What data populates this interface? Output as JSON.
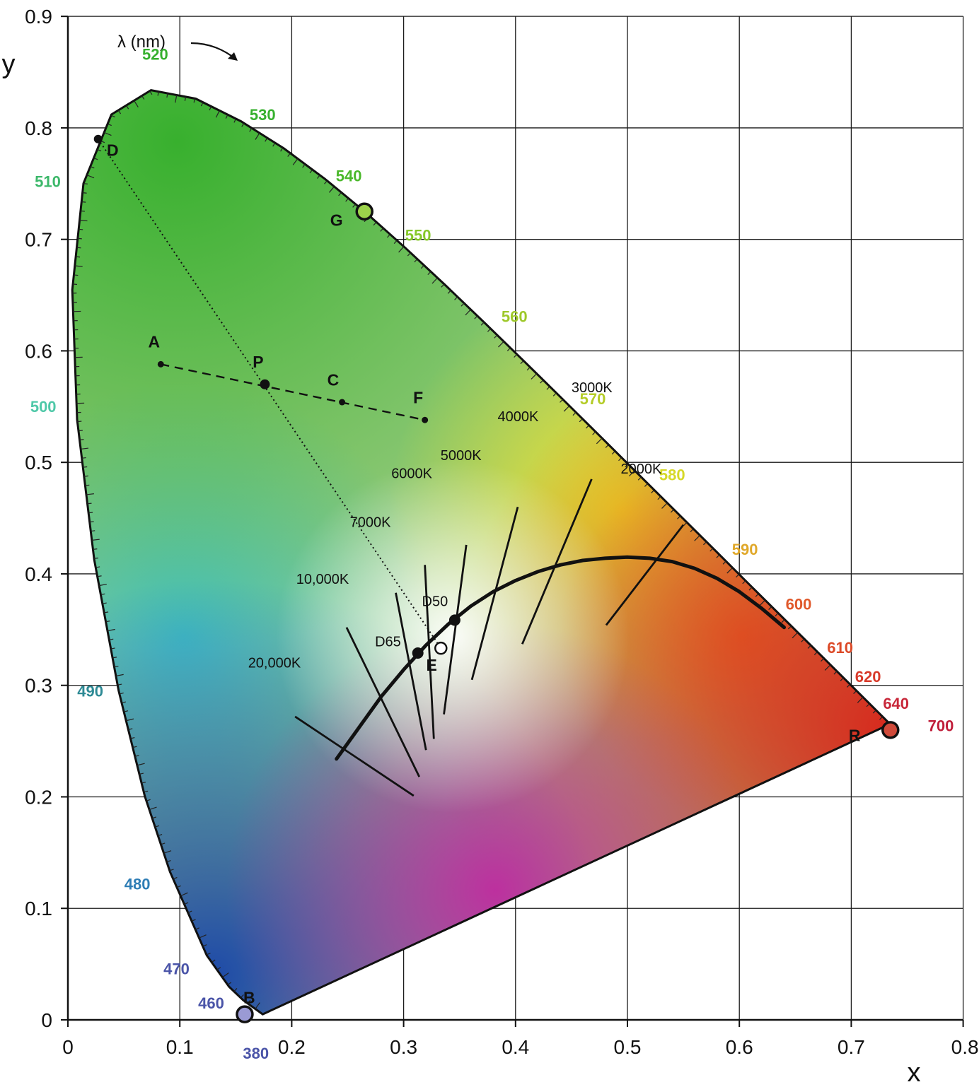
{
  "chart_data": {
    "type": "scatter",
    "xlabel": "x",
    "ylabel": "y",
    "xlim": [
      0,
      0.8
    ],
    "ylim": [
      0,
      0.9
    ],
    "x_ticks": [
      "0",
      "0.1",
      "0.2",
      "0.3",
      "0.4",
      "0.5",
      "0.6",
      "0.7",
      "0.8"
    ],
    "y_ticks": [
      "0",
      "0.1",
      "0.2",
      "0.3",
      "0.4",
      "0.5",
      "0.6",
      "0.7",
      "0.8",
      "0.9"
    ],
    "grid": true,
    "annotation": "λ (nm)",
    "spectral_locus": [
      [
        0.1741,
        0.005
      ],
      [
        0.1566,
        0.0177
      ],
      [
        0.144,
        0.0297
      ],
      [
        0.1241,
        0.0578
      ],
      [
        0.0913,
        0.1327
      ],
      [
        0.0687,
        0.2007
      ],
      [
        0.0454,
        0.295
      ],
      [
        0.0235,
        0.4127
      ],
      [
        0.0082,
        0.5384
      ],
      [
        0.0039,
        0.6548
      ],
      [
        0.0139,
        0.7502
      ],
      [
        0.0389,
        0.812
      ],
      [
        0.0743,
        0.8338
      ],
      [
        0.1142,
        0.8262
      ],
      [
        0.1547,
        0.8059
      ],
      [
        0.1929,
        0.7816
      ],
      [
        0.2296,
        0.7543
      ],
      [
        0.2658,
        0.7243
      ],
      [
        0.3016,
        0.6923
      ],
      [
        0.3373,
        0.6589
      ],
      [
        0.3731,
        0.6245
      ],
      [
        0.4087,
        0.5896
      ],
      [
        0.4441,
        0.5547
      ],
      [
        0.4788,
        0.5202
      ],
      [
        0.5125,
        0.4866
      ],
      [
        0.5448,
        0.4544
      ],
      [
        0.5752,
        0.4242
      ],
      [
        0.6029,
        0.3965
      ],
      [
        0.627,
        0.3725
      ],
      [
        0.6482,
        0.3514
      ],
      [
        0.6658,
        0.334
      ],
      [
        0.6915,
        0.3083
      ],
      [
        0.7079,
        0.292
      ],
      [
        0.7347,
        0.2653
      ]
    ],
    "wavelength_labels": [
      {
        "nm": "380",
        "x": 0.168,
        "y": -0.035,
        "color": "#4a54a8"
      },
      {
        "nm": "460",
        "x": 0.128,
        "y": 0.01,
        "color": "#4a54a8"
      },
      {
        "nm": "470",
        "x": 0.097,
        "y": 0.041,
        "color": "#4a54a8"
      },
      {
        "nm": "480",
        "x": 0.062,
        "y": 0.117,
        "color": "#2e7db5"
      },
      {
        "nm": "490",
        "x": 0.02,
        "y": 0.29,
        "color": "#2e8a95"
      },
      {
        "nm": "500",
        "x": -0.022,
        "y": 0.545,
        "color": "#4fc8a8"
      },
      {
        "nm": "510",
        "x": -0.018,
        "y": 0.747,
        "color": "#3cb86a"
      },
      {
        "nm": "520",
        "x": 0.078,
        "y": 0.861,
        "color": "#36b02e"
      },
      {
        "nm": "530",
        "x": 0.174,
        "y": 0.807,
        "color": "#36b02e"
      },
      {
        "nm": "540",
        "x": 0.251,
        "y": 0.752,
        "color": "#4ab82a"
      },
      {
        "nm": "550",
        "x": 0.313,
        "y": 0.699,
        "color": "#86c82a"
      },
      {
        "nm": "560",
        "x": 0.399,
        "y": 0.626,
        "color": "#9ec82a"
      },
      {
        "nm": "570",
        "x": 0.469,
        "y": 0.552,
        "color": "#b4cc28"
      },
      {
        "nm": "580",
        "x": 0.54,
        "y": 0.484,
        "color": "#d6d828"
      },
      {
        "nm": "590",
        "x": 0.605,
        "y": 0.417,
        "color": "#e0a82a"
      },
      {
        "nm": "600",
        "x": 0.653,
        "y": 0.368,
        "color": "#e0582a"
      },
      {
        "nm": "610",
        "x": 0.69,
        "y": 0.329,
        "color": "#dc4a28"
      },
      {
        "nm": "620",
        "x": 0.715,
        "y": 0.303,
        "color": "#d83a2a"
      },
      {
        "nm": "640",
        "x": 0.74,
        "y": 0.279,
        "color": "#c8283a"
      },
      {
        "nm": "700",
        "x": 0.78,
        "y": 0.259,
        "color": "#c01e3a"
      }
    ],
    "primaries": [
      {
        "label": "G",
        "x": 0.265,
        "y": 0.725,
        "color": "#9cd24a",
        "label_x": 0.24,
        "label_y": 0.712
      },
      {
        "label": "R",
        "x": 0.735,
        "y": 0.26,
        "color": "#d04a3a",
        "label_x": 0.703,
        "label_y": 0.25
      },
      {
        "label": "B",
        "x": 0.158,
        "y": 0.005,
        "color": "#9a9ad4",
        "label_x": 0.162,
        "label_y": 0.015
      }
    ],
    "points": [
      {
        "label": "D",
        "x": 0.027,
        "y": 0.79,
        "label_x": 0.04,
        "label_y": 0.775
      },
      {
        "label": "A",
        "x": 0.083,
        "y": 0.588,
        "label_x": 0.077,
        "label_y": 0.603
      },
      {
        "label": "P",
        "x": 0.176,
        "y": 0.57,
        "label_x": 0.17,
        "label_y": 0.585
      },
      {
        "label": "C",
        "x": 0.245,
        "y": 0.554,
        "label_x": 0.237,
        "label_y": 0.569
      },
      {
        "label": "F",
        "x": 0.319,
        "y": 0.538,
        "label_x": 0.313,
        "label_y": 0.553
      },
      {
        "label": "E",
        "x": 0.3333,
        "y": 0.3333,
        "label_x": 0.325,
        "label_y": 0.313
      }
    ],
    "reference_whites": [
      {
        "label": "D65",
        "x": 0.3127,
        "y": 0.329,
        "label_x": 0.286,
        "label_y": 0.335
      },
      {
        "label": "D50",
        "x": 0.3457,
        "y": 0.3585,
        "label_x": 0.328,
        "label_y": 0.371
      }
    ],
    "planckian_locus": [
      [
        0.24,
        0.234
      ],
      [
        0.26,
        0.262
      ],
      [
        0.28,
        0.29
      ],
      [
        0.3,
        0.314
      ],
      [
        0.32,
        0.336
      ],
      [
        0.34,
        0.355
      ],
      [
        0.36,
        0.371
      ],
      [
        0.38,
        0.384
      ],
      [
        0.4,
        0.394
      ],
      [
        0.42,
        0.402
      ],
      [
        0.44,
        0.408
      ],
      [
        0.46,
        0.412
      ],
      [
        0.48,
        0.414
      ],
      [
        0.5,
        0.415
      ],
      [
        0.52,
        0.414
      ],
      [
        0.54,
        0.411
      ],
      [
        0.56,
        0.405
      ],
      [
        0.58,
        0.396
      ],
      [
        0.6,
        0.384
      ],
      [
        0.62,
        0.369
      ],
      [
        0.64,
        0.352
      ]
    ],
    "isotemperature_lines": [
      {
        "label": "20,000K",
        "x1": 0.203,
        "y1": 0.272,
        "x2": 0.309,
        "y2": 0.201,
        "label_x": 0.161,
        "label_y": 0.316
      },
      {
        "label": "10,000K",
        "x1": 0.249,
        "y1": 0.352,
        "x2": 0.314,
        "y2": 0.218,
        "label_x": 0.204,
        "label_y": 0.391
      },
      {
        "label": "7000K",
        "x1": 0.293,
        "y1": 0.383,
        "x2": 0.32,
        "y2": 0.242,
        "label_x": 0.252,
        "label_y": 0.442
      },
      {
        "label": "6000K",
        "x1": 0.319,
        "y1": 0.408,
        "x2": 0.327,
        "y2": 0.252,
        "label_x": 0.289,
        "label_y": 0.486
      },
      {
        "label": "5000K",
        "x1": 0.356,
        "y1": 0.426,
        "x2": 0.336,
        "y2": 0.274,
        "label_x": 0.333,
        "label_y": 0.502
      },
      {
        "label": "4000K",
        "x1": 0.402,
        "y1": 0.46,
        "x2": 0.361,
        "y2": 0.305,
        "label_x": 0.384,
        "label_y": 0.537
      },
      {
        "label": "3000K",
        "x1": 0.468,
        "y1": 0.485,
        "x2": 0.406,
        "y2": 0.337,
        "label_x": 0.45,
        "label_y": 0.563
      },
      {
        "label": "2000K",
        "x1": 0.55,
        "y1": 0.444,
        "x2": 0.481,
        "y2": 0.354,
        "label_x": 0.494,
        "label_y": 0.49
      }
    ],
    "lines": [
      {
        "from": "D",
        "to": "E",
        "style": "dotted"
      },
      {
        "from": "A",
        "to": "F",
        "style": "dashed"
      }
    ]
  }
}
